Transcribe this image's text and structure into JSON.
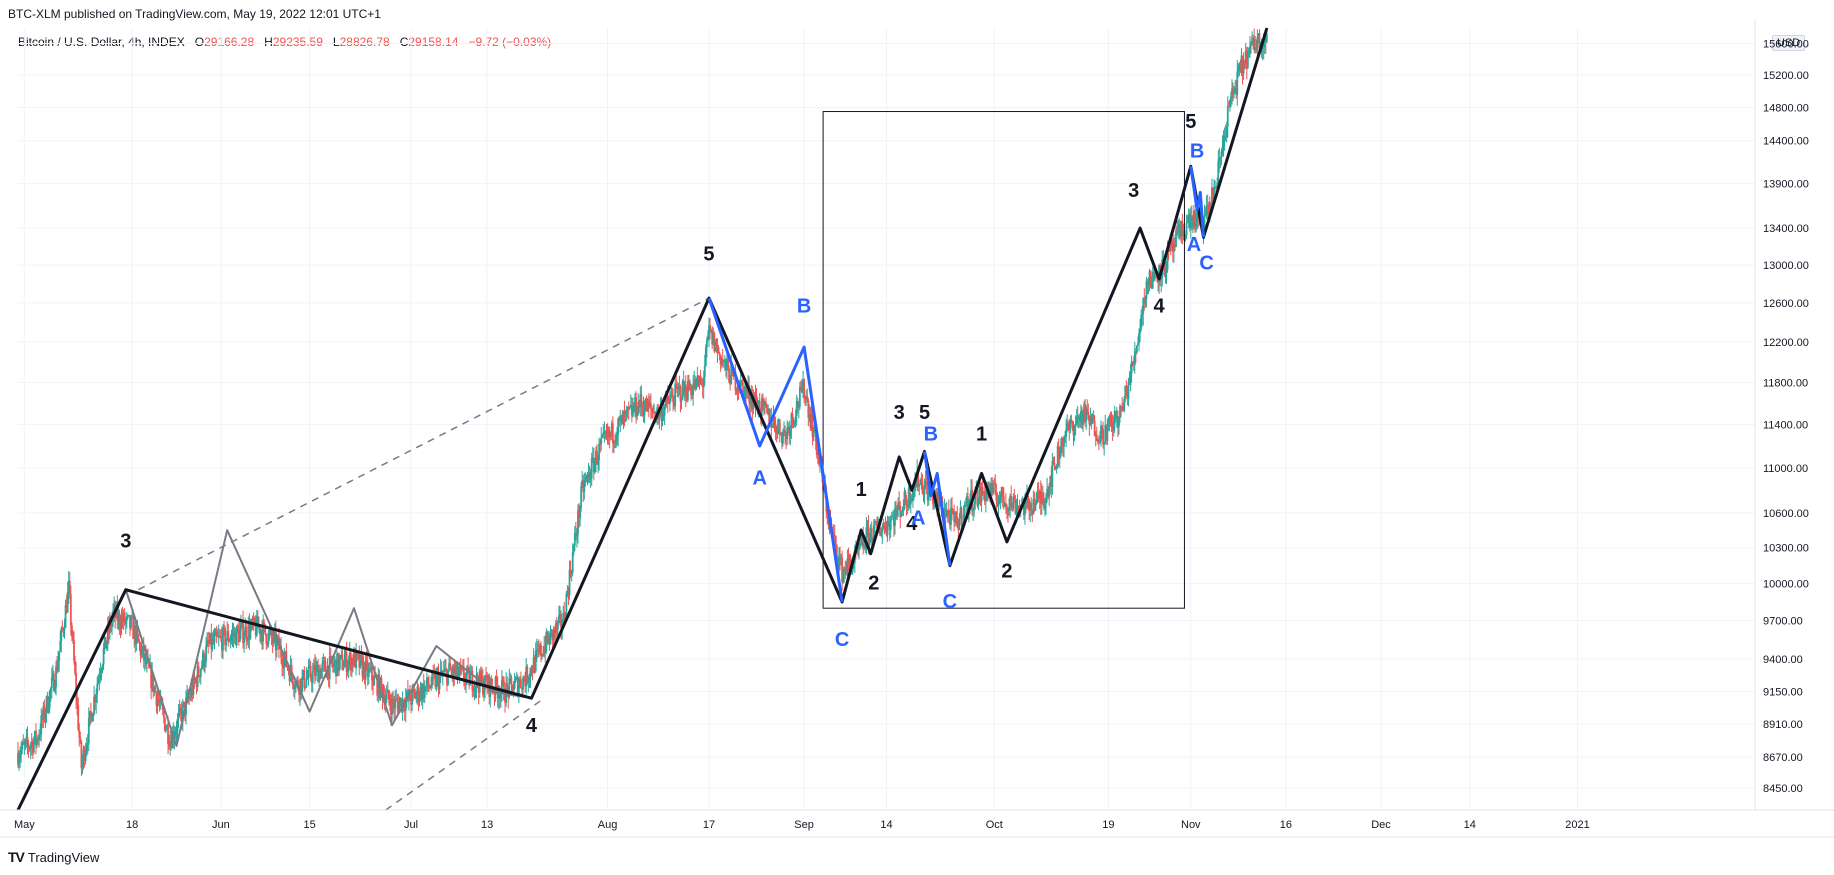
{
  "header": {
    "publish_line": "BTC-XLM published on TradingView.com, May 19, 2022 12:01 UTC+1",
    "symbol": "Bitcoin / U.S. Dollar, 4h, INDEX",
    "open_label": "O",
    "open": "29166.28",
    "high_label": "H",
    "high": "29235.59",
    "low_label": "L",
    "low": "28826.78",
    "close_label": "C",
    "close": "29158.14",
    "change": "−9.72 (−0.03%)",
    "currency": "USD"
  },
  "footer": {
    "logo_mark": "TV",
    "logo_text": "TradingView"
  },
  "chart_data": {
    "type": "candlestick",
    "title": "Bitcoin / U.S. Dollar, 4h, INDEX",
    "scale": "log",
    "ylim": [
      8300,
      15800
    ],
    "xlim_day": [
      0,
      274
    ],
    "x_ticks": [
      {
        "label": "May",
        "day": 1
      },
      {
        "label": "18",
        "day": 18
      },
      {
        "label": "Jun",
        "day": 32
      },
      {
        "label": "15",
        "day": 46
      },
      {
        "label": "Jul",
        "day": 62
      },
      {
        "label": "13",
        "day": 74
      },
      {
        "label": "Aug",
        "day": 93
      },
      {
        "label": "17",
        "day": 109
      },
      {
        "label": "Sep",
        "day": 124
      },
      {
        "label": "14",
        "day": 137
      },
      {
        "label": "Oct",
        "day": 154
      },
      {
        "label": "19",
        "day": 172
      },
      {
        "label": "Nov",
        "day": 185
      },
      {
        "label": "16",
        "day": 200
      },
      {
        "label": "Dec",
        "day": 215
      },
      {
        "label": "14",
        "day": 229
      },
      {
        "label": "2021",
        "day": 246
      }
    ],
    "y_ticks": [
      8450,
      8670,
      8910,
      9150,
      9400,
      9700,
      10000,
      10300,
      10600,
      11000,
      11400,
      11800,
      12200,
      12600,
      13000,
      13400,
      13900,
      14400,
      14800,
      15200,
      15600
    ],
    "price_path": [
      [
        0,
        8700
      ],
      [
        3,
        8800
      ],
      [
        6,
        9300
      ],
      [
        8,
        9950
      ],
      [
        10,
        8600
      ],
      [
        13,
        9350
      ],
      [
        15,
        9750
      ],
      [
        18,
        9650
      ],
      [
        21,
        9250
      ],
      [
        24,
        8800
      ],
      [
        27,
        9100
      ],
      [
        30,
        9500
      ],
      [
        32,
        9550
      ],
      [
        35,
        9600
      ],
      [
        38,
        9650
      ],
      [
        41,
        9500
      ],
      [
        44,
        9200
      ],
      [
        47,
        9300
      ],
      [
        50,
        9350
      ],
      [
        53,
        9400
      ],
      [
        56,
        9250
      ],
      [
        59,
        9050
      ],
      [
        62,
        9100
      ],
      [
        65,
        9200
      ],
      [
        68,
        9300
      ],
      [
        71,
        9250
      ],
      [
        74,
        9200
      ],
      [
        77,
        9150
      ],
      [
        80,
        9250
      ],
      [
        83,
        9500
      ],
      [
        86,
        9700
      ],
      [
        89,
        10800
      ],
      [
        92,
        11200
      ],
      [
        95,
        11400
      ],
      [
        98,
        11600
      ],
      [
        101,
        11500
      ],
      [
        104,
        11700
      ],
      [
        108,
        11800
      ],
      [
        109,
        12300
      ],
      [
        112,
        11900
      ],
      [
        115,
        11700
      ],
      [
        118,
        11500
      ],
      [
        121,
        11300
      ],
      [
        124,
        11750
      ],
      [
        126,
        11200
      ],
      [
        128,
        10500
      ],
      [
        130,
        10100
      ],
      [
        132,
        10200
      ],
      [
        134,
        10400
      ],
      [
        137,
        10500
      ],
      [
        140,
        10700
      ],
      [
        142,
        10900
      ],
      [
        145,
        10700
      ],
      [
        148,
        10500
      ],
      [
        150,
        10700
      ],
      [
        153,
        10800
      ],
      [
        156,
        10700
      ],
      [
        159,
        10650
      ],
      [
        162,
        10750
      ],
      [
        165,
        11300
      ],
      [
        168,
        11500
      ],
      [
        171,
        11300
      ],
      [
        174,
        11500
      ],
      [
        176,
        12000
      ],
      [
        178,
        12800
      ],
      [
        181,
        13000
      ],
      [
        183,
        13300
      ],
      [
        185,
        13500
      ],
      [
        187,
        13450
      ],
      [
        189,
        13900
      ],
      [
        191,
        14800
      ],
      [
        193,
        15300
      ],
      [
        195,
        15600
      ],
      [
        197,
        15700
      ]
    ],
    "annotations": {
      "box": {
        "day_start": 127,
        "day_end": 184,
        "price_low": 9800,
        "price_high": 14750
      },
      "channel_upper": [
        [
          19,
          9950
        ],
        [
          109,
          12650
        ]
      ],
      "channel_lower": [
        [
          58,
          8300
        ],
        [
          83,
          9100
        ]
      ],
      "black_wave": [
        [
          0,
          8300
        ],
        [
          17,
          9950
        ],
        [
          81,
          9100
        ],
        [
          109,
          12650
        ],
        [
          130,
          9850
        ],
        [
          133,
          10450
        ],
        [
          134.5,
          10250
        ],
        [
          139,
          11100
        ],
        [
          141,
          10800
        ],
        [
          143,
          11150
        ],
        [
          147,
          10150
        ],
        [
          152,
          10950
        ],
        [
          156,
          10350
        ],
        [
          177,
          13400
        ],
        [
          180,
          12850
        ],
        [
          185,
          14100
        ],
        [
          187,
          13300
        ],
        [
          197,
          15800
        ]
      ],
      "blue_waves": [
        [
          [
            109,
            12650
          ],
          [
            117,
            11200
          ],
          [
            124,
            12150
          ],
          [
            130,
            9850
          ]
        ],
        [
          [
            143,
            11150
          ],
          [
            144,
            10750
          ],
          [
            145,
            10950
          ],
          [
            147,
            10150
          ]
        ],
        [
          [
            185,
            14100
          ],
          [
            186,
            13600
          ],
          [
            186.5,
            13800
          ],
          [
            187,
            13300
          ]
        ]
      ],
      "gray_wave": [
        [
          17,
          9950
        ],
        [
          25,
          8750
        ],
        [
          33,
          10450
        ],
        [
          46,
          9000
        ],
        [
          53,
          9800
        ],
        [
          59,
          8900
        ],
        [
          66,
          9500
        ],
        [
          75,
          9150
        ],
        [
          81,
          9100
        ]
      ],
      "labels": [
        {
          "text": "3",
          "color": "black",
          "day": 17,
          "price": 10300
        },
        {
          "text": "4",
          "color": "black",
          "day": 81,
          "price": 8850
        },
        {
          "text": "5",
          "color": "black",
          "day": 109,
          "price": 13050
        },
        {
          "text": "A",
          "color": "blue",
          "day": 117,
          "price": 10850
        },
        {
          "text": "B",
          "color": "blue",
          "day": 124,
          "price": 12500
        },
        {
          "text": "C",
          "color": "blue",
          "day": 130,
          "price": 9500
        },
        {
          "text": "1",
          "color": "black",
          "day": 133,
          "price": 10750
        },
        {
          "text": "2",
          "color": "black",
          "day": 135,
          "price": 9950
        },
        {
          "text": "3",
          "color": "black",
          "day": 139,
          "price": 11450
        },
        {
          "text": "4",
          "color": "black",
          "day": 141,
          "price": 10450
        },
        {
          "text": "5",
          "color": "black",
          "day": 143,
          "price": 11450
        },
        {
          "text": "A",
          "color": "blue",
          "day": 142,
          "price": 10500
        },
        {
          "text": "B",
          "color": "blue",
          "day": 144,
          "price": 11250
        },
        {
          "text": "C",
          "color": "blue",
          "day": 147,
          "price": 9800
        },
        {
          "text": "1",
          "color": "black",
          "day": 152,
          "price": 11250
        },
        {
          "text": "2",
          "color": "black",
          "day": 156,
          "price": 10050
        },
        {
          "text": "3",
          "color": "black",
          "day": 176,
          "price": 13750
        },
        {
          "text": "4",
          "color": "black",
          "day": 180,
          "price": 12500
        },
        {
          "text": "5",
          "color": "black",
          "day": 185,
          "price": 14550
        },
        {
          "text": "B",
          "color": "blue",
          "day": 186,
          "price": 14200
        },
        {
          "text": "A",
          "color": "blue",
          "day": 185.5,
          "price": 13150
        },
        {
          "text": "C",
          "color": "blue",
          "day": 187.5,
          "price": 12950
        }
      ]
    }
  },
  "colors": {
    "up": "#26a69a",
    "down": "#ef5350",
    "blue": "#2962ff",
    "black": "#131722",
    "gray": "#787b86",
    "grid": "#f0f3fa",
    "axis_text": "#131722"
  }
}
